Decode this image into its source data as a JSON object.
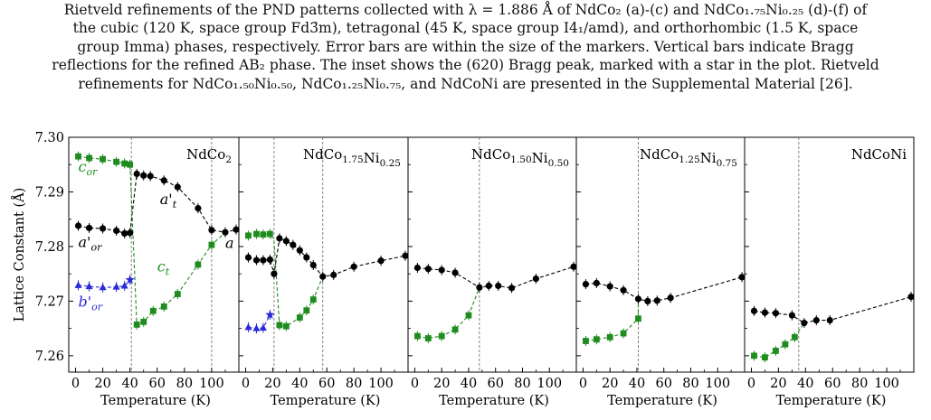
{
  "caption": {
    "lines": [
      "Rietveld refinements of the PND patterns collected with λ = 1.886 Å of NdCo₂ (a)-(c) and NdCo₁.₇₅Ni₀.₂₅ (d)-(f) of",
      "the cubic (120 K, space group Fd3̄m), tetragonal (45 K, space group I4₁/amd), and orthorhombic (1.5 K, space",
      "group Imma) phases, respectively. Error bars are within the size of the markers. Vertical bars indicate Bragg",
      "reflections for the refined AB₂ phase. The inset shows the (620) Bragg peak, marked with a star in the plot. Rietveld",
      "refinements for NdCo₁.₅₀Ni₀.₅₀, NdCo₁.₂₅Ni₀.₇₅, and NdCoNi are presented in the Supplemental Material [26]."
    ]
  },
  "chart_data": [
    {
      "type": "scatter",
      "title": "NdCo2",
      "xlabel": "Temperature (K)",
      "ylabel": "Lattice Constant (Å)",
      "xlim": [
        -5,
        120
      ],
      "ylim": [
        7.257,
        7.3
      ],
      "xticks": [
        0,
        20,
        40,
        60,
        80,
        100
      ],
      "yticks": [
        7.26,
        7.27,
        7.28,
        7.29,
        7.3
      ],
      "transitions": [
        41,
        100
      ],
      "labels": [
        {
          "text": "c",
          "sub": "or",
          "color": "#1e8c1e",
          "x": 2,
          "y": 7.2937
        },
        {
          "text": "a'",
          "sub": "t",
          "color": "#000000",
          "x": 62,
          "y": 7.2878
        },
        {
          "text": "a'",
          "sub": "or",
          "color": "#000000",
          "x": 2,
          "y": 7.2799
        },
        {
          "text": "c",
          "sub": "t",
          "color": "#1e8c1e",
          "x": 60,
          "y": 7.2754
        },
        {
          "text": "a",
          "sub": "",
          "color": "#000000",
          "x": 110,
          "y": 7.2797
        },
        {
          "text": "b'",
          "sub": "or",
          "color": "#2a2ad8",
          "x": 2,
          "y": 7.269
        }
      ],
      "series": [
        {
          "color": "#000000",
          "marker": "circle",
          "x": [
            2,
            10,
            20,
            30,
            36,
            40
          ],
          "y": [
            7.2838,
            7.2834,
            7.2833,
            7.2829,
            7.2824,
            7.2825
          ]
        },
        {
          "color": "#000000",
          "marker": "circle",
          "x": [
            45,
            50,
            55,
            65,
            75,
            90,
            100,
            110,
            118
          ],
          "y": [
            7.2933,
            7.293,
            7.2929,
            7.2921,
            7.2909,
            7.287,
            7.283,
            7.2826,
            7.2831
          ]
        },
        {
          "color": "#1e8c1e",
          "marker": "square",
          "x": [
            2,
            10,
            20,
            30,
            36,
            40
          ],
          "y": [
            7.2965,
            7.2962,
            7.296,
            7.2955,
            7.2952,
            7.295
          ]
        },
        {
          "color": "#1e8c1e",
          "marker": "square",
          "x": [
            45,
            50,
            57,
            65,
            75,
            90,
            100
          ],
          "y": [
            7.2657,
            7.2662,
            7.2682,
            7.269,
            7.2713,
            7.2767,
            7.2803
          ]
        },
        {
          "color": "#2a2ad8",
          "marker": "triangle",
          "x": [
            2,
            10,
            20,
            30,
            36
          ],
          "y": [
            7.2729,
            7.2727,
            7.2725,
            7.2726,
            7.2728
          ]
        },
        {
          "color": "#2a2ad8",
          "marker": "star",
          "x": [
            40
          ],
          "y": [
            7.2739
          ]
        }
      ],
      "dashed": [
        {
          "color": "#000000",
          "points": [
            [
              2,
              7.2838
            ],
            [
              10,
              7.2834
            ],
            [
              20,
              7.2833
            ],
            [
              30,
              7.2829
            ],
            [
              36,
              7.2824
            ],
            [
              40,
              7.2825
            ],
            [
              45,
              7.2933
            ],
            [
              50,
              7.293
            ],
            [
              55,
              7.2929
            ],
            [
              65,
              7.2921
            ],
            [
              75,
              7.2909
            ],
            [
              90,
              7.287
            ],
            [
              100,
              7.283
            ],
            [
              110,
              7.2826
            ],
            [
              118,
              7.2831
            ]
          ]
        },
        {
          "color": "#1e8c1e",
          "points": [
            [
              2,
              7.2965
            ],
            [
              10,
              7.2962
            ],
            [
              20,
              7.296
            ],
            [
              30,
              7.2955
            ],
            [
              36,
              7.2952
            ],
            [
              40,
              7.295
            ],
            [
              45,
              7.2657
            ],
            [
              50,
              7.2662
            ],
            [
              57,
              7.2682
            ],
            [
              65,
              7.269
            ],
            [
              75,
              7.2713
            ],
            [
              90,
              7.2767
            ],
            [
              100,
              7.2803
            ],
            [
              110,
              7.2826
            ]
          ]
        },
        {
          "color": "#2a2ad8",
          "points": [
            [
              2,
              7.2729
            ],
            [
              10,
              7.2727
            ],
            [
              20,
              7.2725
            ],
            [
              30,
              7.2726
            ],
            [
              36,
              7.2728
            ],
            [
              40,
              7.2739
            ]
          ]
        }
      ]
    },
    {
      "type": "scatter",
      "title": "NdCo1.75Ni0.25",
      "xlabel": "Temperature (K)",
      "xlim": [
        -5,
        120
      ],
      "ylim": [
        7.257,
        7.3
      ],
      "xticks": [
        0,
        20,
        40,
        60,
        80,
        100
      ],
      "transitions": [
        21,
        57
      ],
      "labels": [],
      "series": [
        {
          "color": "#000000",
          "marker": "circle",
          "x": [
            2,
            8,
            13,
            18
          ],
          "y": [
            7.278,
            7.2775,
            7.2775,
            7.2776
          ]
        },
        {
          "color": "#000000",
          "marker": "circle",
          "x": [
            21,
            25,
            30,
            35,
            40,
            45,
            50,
            57,
            65,
            80,
            100,
            118
          ],
          "y": [
            7.275,
            7.2815,
            7.281,
            7.2803,
            7.2793,
            7.278,
            7.2766,
            7.2745,
            7.2748,
            7.2763,
            7.2774,
            7.2783
          ]
        },
        {
          "color": "#1e8c1e",
          "marker": "square",
          "x": [
            2,
            8,
            13,
            18
          ],
          "y": [
            7.282,
            7.2823,
            7.2822,
            7.2823
          ]
        },
        {
          "color": "#1e8c1e",
          "marker": "square",
          "x": [
            25,
            30,
            40,
            45,
            50
          ],
          "y": [
            7.2656,
            7.2654,
            7.267,
            7.2683,
            7.2703
          ]
        },
        {
          "color": "#2a2ad8",
          "marker": "triangle",
          "x": [
            2,
            8,
            13
          ],
          "y": [
            7.2652,
            7.265,
            7.2651
          ]
        },
        {
          "color": "#2a2ad8",
          "marker": "star",
          "x": [
            18
          ],
          "y": [
            7.2675
          ]
        }
      ],
      "dashed": [
        {
          "color": "#000000",
          "points": [
            [
              2,
              7.278
            ],
            [
              8,
              7.2775
            ],
            [
              13,
              7.2775
            ],
            [
              18,
              7.2776
            ],
            [
              21,
              7.275
            ],
            [
              25,
              7.2815
            ],
            [
              30,
              7.281
            ],
            [
              35,
              7.2803
            ],
            [
              40,
              7.2793
            ],
            [
              45,
              7.278
            ],
            [
              50,
              7.2766
            ],
            [
              57,
              7.2745
            ],
            [
              65,
              7.2748
            ],
            [
              80,
              7.2763
            ],
            [
              100,
              7.2774
            ],
            [
              118,
              7.2783
            ]
          ]
        },
        {
          "color": "#1e8c1e",
          "points": [
            [
              2,
              7.282
            ],
            [
              8,
              7.2823
            ],
            [
              13,
              7.2822
            ],
            [
              18,
              7.2823
            ],
            [
              21,
              7.281
            ],
            [
              25,
              7.2656
            ],
            [
              30,
              7.2654
            ],
            [
              40,
              7.267
            ],
            [
              45,
              7.2683
            ],
            [
              50,
              7.2703
            ],
            [
              57,
              7.2745
            ]
          ]
        },
        {
          "color": "#2a2ad8",
          "points": [
            [
              2,
              7.2652
            ],
            [
              8,
              7.265
            ],
            [
              13,
              7.2651
            ],
            [
              18,
              7.2675
            ]
          ]
        }
      ]
    },
    {
      "type": "scatter",
      "title": "NdCo1.50Ni0.50",
      "xlabel": "Temperature (K)",
      "xlim": [
        -5,
        120
      ],
      "ylim": [
        7.257,
        7.3
      ],
      "xticks": [
        0,
        20,
        40,
        60,
        80,
        100
      ],
      "transitions": [
        48
      ],
      "labels": [],
      "series": [
        {
          "color": "#000000",
          "marker": "circle",
          "x": [
            2,
            10,
            20,
            30,
            48,
            55,
            62,
            72,
            90,
            118
          ],
          "y": [
            7.2761,
            7.2759,
            7.2757,
            7.2752,
            7.2725,
            7.2728,
            7.2728,
            7.2724,
            7.2741,
            7.2763
          ]
        },
        {
          "color": "#1e8c1e",
          "marker": "square",
          "x": [
            2,
            10,
            20,
            30,
            40
          ],
          "y": [
            7.2636,
            7.2632,
            7.2636,
            7.2648,
            7.2674
          ]
        }
      ],
      "dashed": [
        {
          "color": "#000000",
          "points": [
            [
              2,
              7.2761
            ],
            [
              10,
              7.2759
            ],
            [
              20,
              7.2757
            ],
            [
              30,
              7.2752
            ],
            [
              48,
              7.2725
            ],
            [
              55,
              7.2728
            ],
            [
              62,
              7.2728
            ],
            [
              72,
              7.2724
            ],
            [
              90,
              7.2741
            ],
            [
              118,
              7.2763
            ]
          ]
        },
        {
          "color": "#1e8c1e",
          "points": [
            [
              2,
              7.2636
            ],
            [
              10,
              7.2632
            ],
            [
              20,
              7.2636
            ],
            [
              30,
              7.2648
            ],
            [
              40,
              7.2674
            ],
            [
              48,
              7.2725
            ]
          ]
        }
      ]
    },
    {
      "type": "scatter",
      "title": "NdCo1.25Ni0.75",
      "xlabel": "Temperature (K)",
      "xlim": [
        -5,
        120
      ],
      "ylim": [
        7.257,
        7.3
      ],
      "xticks": [
        0,
        20,
        40,
        60,
        80,
        100
      ],
      "transitions": [
        41
      ],
      "labels": [],
      "series": [
        {
          "color": "#000000",
          "marker": "circle",
          "x": [
            2,
            10,
            20,
            30,
            41,
            48,
            55,
            65,
            118
          ],
          "y": [
            7.2731,
            7.2733,
            7.2727,
            7.272,
            7.2704,
            7.27,
            7.2701,
            7.2706,
            7.2744
          ]
        },
        {
          "color": "#1e8c1e",
          "marker": "square",
          "x": [
            2,
            10,
            20,
            30,
            41
          ],
          "y": [
            7.2627,
            7.263,
            7.2634,
            7.2641,
            7.2668
          ]
        }
      ],
      "dashed": [
        {
          "color": "#000000",
          "points": [
            [
              2,
              7.2731
            ],
            [
              10,
              7.2733
            ],
            [
              20,
              7.2727
            ],
            [
              30,
              7.272
            ],
            [
              41,
              7.2704
            ],
            [
              48,
              7.27
            ],
            [
              55,
              7.2701
            ],
            [
              65,
              7.2706
            ],
            [
              118,
              7.2744
            ]
          ]
        },
        {
          "color": "#1e8c1e",
          "points": [
            [
              2,
              7.2627
            ],
            [
              10,
              7.263
            ],
            [
              20,
              7.2634
            ],
            [
              30,
              7.2641
            ],
            [
              41,
              7.2668
            ],
            [
              41,
              7.2704
            ]
          ]
        }
      ]
    },
    {
      "type": "scatter",
      "title": "NdCoNi",
      "xlabel": "Temperature (K)",
      "xlim": [
        -5,
        120
      ],
      "ylim": [
        7.257,
        7.3
      ],
      "xticks": [
        0,
        20,
        40,
        60,
        80,
        100
      ],
      "transitions": [
        35
      ],
      "labels": [],
      "series": [
        {
          "color": "#000000",
          "marker": "circle",
          "x": [
            2,
            10,
            18,
            30,
            39,
            48,
            58,
            118
          ],
          "y": [
            7.2682,
            7.2679,
            7.2678,
            7.2674,
            7.266,
            7.2665,
            7.2665,
            7.2708
          ]
        },
        {
          "color": "#1e8c1e",
          "marker": "square",
          "x": [
            2,
            10,
            18,
            25,
            32
          ],
          "y": [
            7.26,
            7.2597,
            7.2609,
            7.2621,
            7.2634
          ]
        }
      ],
      "dashed": [
        {
          "color": "#000000",
          "points": [
            [
              2,
              7.2682
            ],
            [
              10,
              7.2679
            ],
            [
              18,
              7.2678
            ],
            [
              30,
              7.2674
            ],
            [
              39,
              7.266
            ],
            [
              48,
              7.2665
            ],
            [
              58,
              7.2665
            ],
            [
              118,
              7.2708
            ]
          ]
        },
        {
          "color": "#1e8c1e",
          "points": [
            [
              2,
              7.26
            ],
            [
              10,
              7.2597
            ],
            [
              18,
              7.2609
            ],
            [
              25,
              7.2621
            ],
            [
              32,
              7.2634
            ],
            [
              39,
              7.266
            ]
          ]
        }
      ]
    }
  ]
}
